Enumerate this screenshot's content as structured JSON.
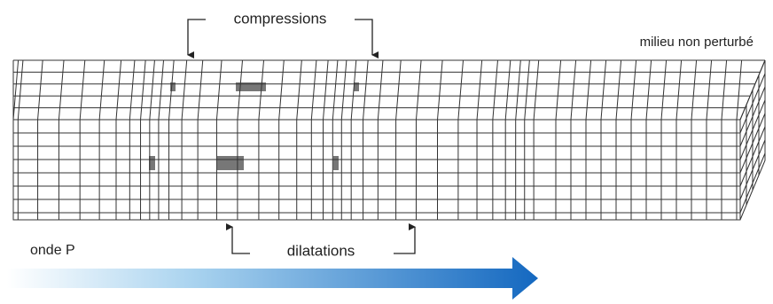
{
  "labels": {
    "compressions": "compressions",
    "undisturbed": "milieu non perturbé",
    "dilatations": "dilatations",
    "wave": "onde P"
  }
}
